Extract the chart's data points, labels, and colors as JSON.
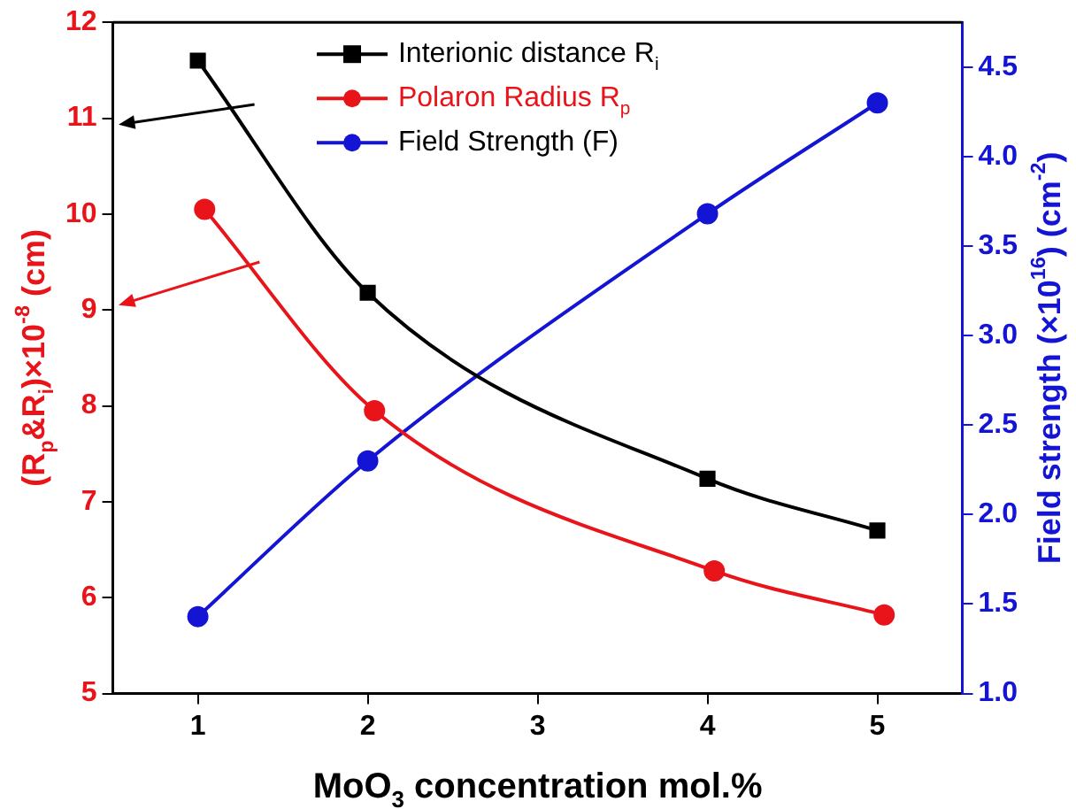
{
  "chart_data": {
    "type": "line",
    "xlabel": "MoO$_{3}$ concentration mol.%",
    "ylabel": "(R$_{p}$&R$_{i}$)×10$^{-8}$ (cm)",
    "y2label": "Field strength (×10$^{16}$) (cm$^{-2}$)",
    "x": [
      1,
      2,
      4,
      5
    ],
    "series": [
      {
        "name": "Interionic distance R$_{i}$",
        "color": "#000000",
        "marker": "square",
        "values": [
          11.6,
          9.18,
          7.24,
          6.7
        ]
      },
      {
        "name": "Polaron Radius R$_{p}$",
        "color": "#e8141a",
        "marker": "circle",
        "x": [
          1.04,
          2.04,
          4.04,
          5.04
        ],
        "values": [
          10.05,
          7.95,
          6.28,
          5.82
        ]
      },
      {
        "name": "Field Strength (F)",
        "color": "#1414d4",
        "marker": "circle",
        "axis": "y2",
        "values": [
          1.43,
          2.3,
          3.68,
          4.3
        ]
      }
    ],
    "xlim": [
      0.5,
      5.5
    ],
    "xticks": [
      1,
      2,
      3,
      4,
      5
    ],
    "ylim": [
      5,
      12
    ],
    "yticks": [
      5,
      6,
      7,
      8,
      9,
      10,
      11,
      12
    ],
    "y2lim": [
      1,
      4.75
    ],
    "y2ticks": [
      {
        "value": 1,
        "label": "1.0"
      },
      {
        "value": 1.5,
        "label": "1.5"
      },
      {
        "value": 2,
        "label": "2.0"
      },
      {
        "value": 2.5,
        "label": "2.5"
      },
      {
        "value": 3,
        "label": "3.0"
      },
      {
        "value": 3.5,
        "label": "3.5"
      },
      {
        "value": 4,
        "label": "4.0"
      },
      {
        "value": 4.5,
        "label": "4.5"
      }
    ],
    "grid": false,
    "legend": "top",
    "line_style": "solid"
  }
}
